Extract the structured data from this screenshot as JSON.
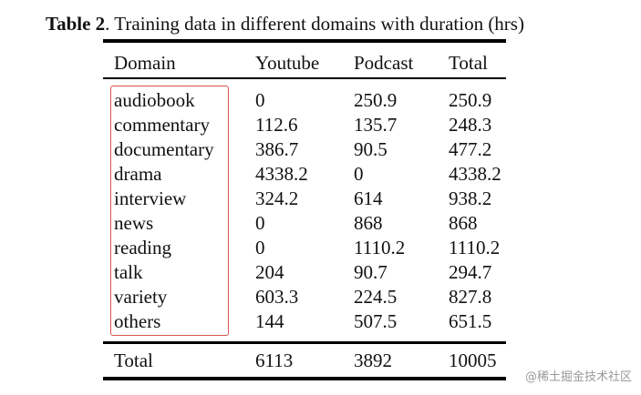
{
  "caption": {
    "label": "Table 2",
    "text": ". Training data in different domains with duration (hrs)"
  },
  "table": {
    "headers": [
      "Domain",
      "Youtube",
      "Podcast",
      "Total"
    ],
    "rows": [
      [
        "audiobook",
        "0",
        "250.9",
        "250.9"
      ],
      [
        "commentary",
        "112.6",
        "135.7",
        "248.3"
      ],
      [
        "documentary",
        "386.7",
        "90.5",
        "477.2"
      ],
      [
        "drama",
        "4338.2",
        "0",
        "4338.2"
      ],
      [
        "interview",
        "324.2",
        "614",
        "938.2"
      ],
      [
        "news",
        "0",
        "868",
        "868"
      ],
      [
        "reading",
        "0",
        "1110.2",
        "1110.2"
      ],
      [
        "talk",
        "204",
        "90.7",
        "294.7"
      ],
      [
        "variety",
        "603.3",
        "224.5",
        "827.8"
      ],
      [
        "others",
        "144",
        "507.5",
        "651.5"
      ]
    ],
    "total": [
      "Total",
      "6113",
      "3892",
      "10005"
    ]
  },
  "highlight_color": "#d9534f",
  "watermark": "@稀土掘金技术社区"
}
